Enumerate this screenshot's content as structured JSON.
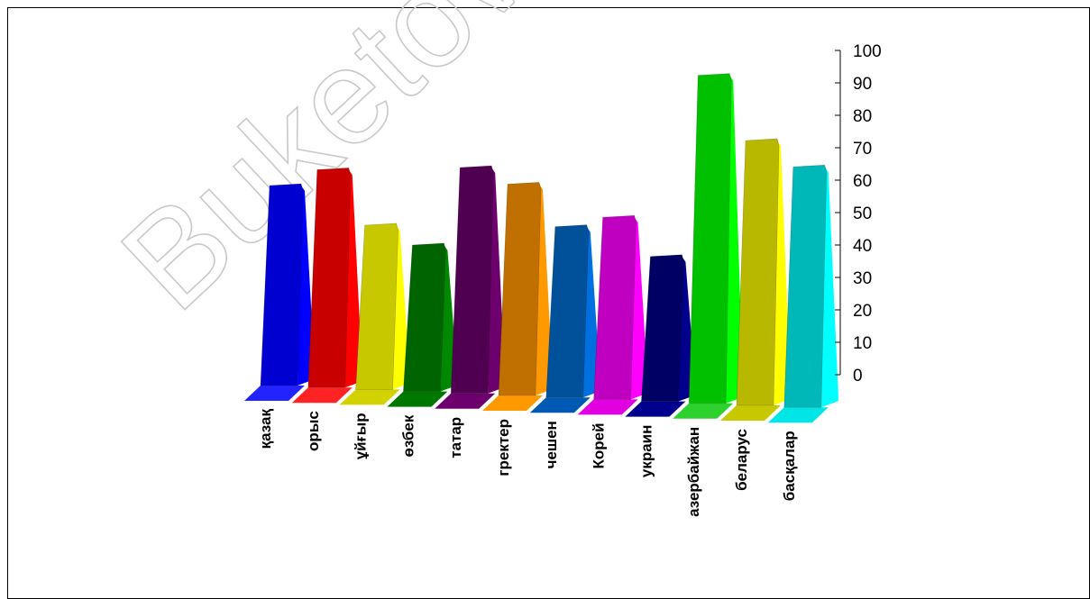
{
  "watermark": "Buketov",
  "chart_data": {
    "type": "bar",
    "style": "3d-tapered",
    "categories": [
      "қазақ",
      "орыс",
      "ұйғыр",
      "өзбек",
      "татар",
      "гректер",
      "чешен",
      "Корей",
      "украин",
      "азербайжан",
      "беларус",
      "басқалар"
    ],
    "values": [
      60,
      65,
      48,
      42,
      66,
      61,
      48,
      51,
      39,
      95,
      75,
      67
    ],
    "ylim": [
      0,
      100
    ],
    "yticks": [
      "0",
      "10",
      "20",
      "30",
      "40",
      "50",
      "60",
      "70",
      "80",
      "90",
      "100"
    ],
    "axis_position": "right",
    "grid": false,
    "colors": [
      {
        "front": "#0000d0",
        "side": "#0000ff",
        "base": "#2323ff"
      },
      {
        "front": "#c80000",
        "side": "#ff0000",
        "base": "#ff2323"
      },
      {
        "front": "#c8c800",
        "side": "#ffff00",
        "base": "#d2d200"
      },
      {
        "front": "#006400",
        "side": "#008800",
        "base": "#007800"
      },
      {
        "front": "#500050",
        "side": "#6e006e",
        "base": "#6e006e"
      },
      {
        "front": "#c07000",
        "side": "#ff9900",
        "base": "#ff9900"
      },
      {
        "front": "#00509a",
        "side": "#0070e0",
        "base": "#005ab4"
      },
      {
        "front": "#c000c0",
        "side": "#ff00ff",
        "base": "#e000e0"
      },
      {
        "front": "#000064",
        "side": "#00008c",
        "base": "#00008c"
      },
      {
        "front": "#00c000",
        "side": "#00ff00",
        "base": "#2ed22e"
      },
      {
        "front": "#b8b800",
        "side": "#ffff00",
        "base": "#c8c800"
      },
      {
        "front": "#00b8b8",
        "side": "#00ffff",
        "base": "#00e6e6"
      }
    ]
  }
}
